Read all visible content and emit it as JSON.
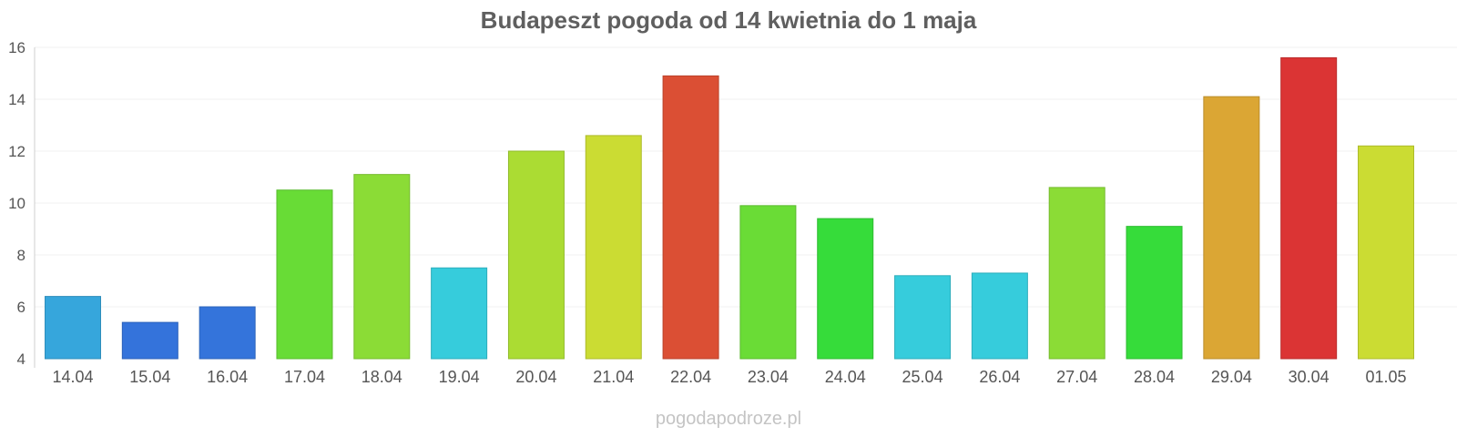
{
  "chart_data": {
    "type": "bar",
    "title": "Budapeszt pogoda od 14 kwietnia do 1 maja",
    "xlabel": "",
    "ylabel": "",
    "ylim": [
      4,
      16
    ],
    "yticks": [
      "4",
      "6",
      "8",
      "10",
      "12",
      "14",
      "16"
    ],
    "grid": true,
    "categories": [
      "14.04",
      "15.04",
      "16.04",
      "17.04",
      "18.04",
      "19.04",
      "20.04",
      "21.04",
      "22.04",
      "23.04",
      "24.04",
      "25.04",
      "26.04",
      "27.04",
      "28.04",
      "29.04",
      "30.04",
      "01.05"
    ],
    "values": [
      6.4,
      5.4,
      6.0,
      10.5,
      11.1,
      7.5,
      12.0,
      12.6,
      14.9,
      9.9,
      9.4,
      7.2,
      7.3,
      10.6,
      9.1,
      14.1,
      15.6,
      12.2
    ],
    "colors": [
      "#36a6dc",
      "#3473db",
      "#3474db",
      "#68dc36",
      "#8bdc36",
      "#36ccdc",
      "#abdc33",
      "#cbdc33",
      "#db4f34",
      "#6adc36",
      "#36dc3a",
      "#36ccdc",
      "#36ccdc",
      "#8bdc36",
      "#36dc3a",
      "#dba634",
      "#db3434",
      "#cbdc33"
    ]
  },
  "watermark": "pogodapodroze.pl"
}
